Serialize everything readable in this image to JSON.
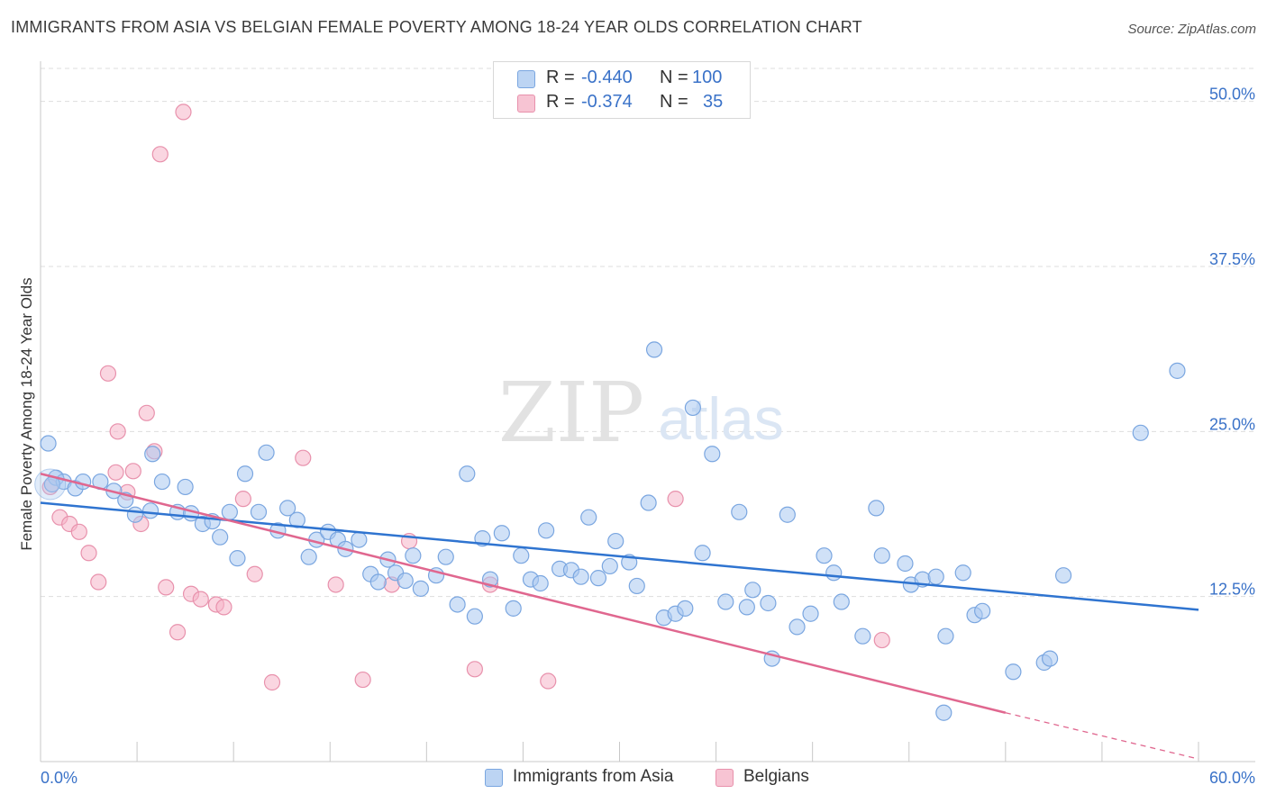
{
  "title": "IMMIGRANTS FROM ASIA VS BELGIAN FEMALE POVERTY AMONG 18-24 YEAR OLDS CORRELATION CHART",
  "source": "Source: ZipAtlas.com",
  "watermark": {
    "zip": "ZIP",
    "atlas": "atlas"
  },
  "colors": {
    "blue_fill": "#a9c8f0",
    "blue_stroke": "#7aa6e0",
    "blue_line": "#2f74d0",
    "pink_fill": "#f5b5c8",
    "pink_stroke": "#e891ac",
    "pink_line": "#e0678f",
    "tick_text": "#3a72c8",
    "grid": "#dddddd"
  },
  "legend_top": {
    "rows": [
      {
        "r_label": "R =",
        "r_value": "-0.440",
        "n_label": "N =",
        "n_value": "100"
      },
      {
        "r_label": "R =",
        "r_value": "-0.374",
        "n_label": "N =",
        "n_value": "35"
      }
    ]
  },
  "legend_bottom": {
    "items": [
      "Immigrants from Asia",
      "Belgians"
    ]
  },
  "chart_data": {
    "type": "scatter",
    "title": "IMMIGRANTS FROM ASIA VS BELGIAN FEMALE POVERTY AMONG 18-24 YEAR OLDS CORRELATION CHART",
    "xlabel": "",
    "ylabel": "Female Poverty Among 18-24 Year Olds",
    "xlim": [
      0,
      60
    ],
    "ylim": [
      0,
      52.5
    ],
    "x_tick_labels": [
      "0.0%",
      "60.0%"
    ],
    "y_ticks": [
      12.5,
      25.0,
      37.5,
      50.0
    ],
    "y_tick_labels": [
      "12.5%",
      "25.0%",
      "37.5%",
      "50.0%"
    ],
    "legend_position": "top-center",
    "series": [
      {
        "name": "Immigrants from Asia",
        "r": -0.44,
        "n": 100,
        "trend": {
          "x": [
            0,
            60
          ],
          "y": [
            19.6,
            11.5
          ]
        },
        "points": [
          [
            0.4,
            24.1
          ],
          [
            0.8,
            21.5
          ],
          [
            1.2,
            21.2
          ],
          [
            1.8,
            20.7
          ],
          [
            2.2,
            21.2
          ],
          [
            3.1,
            21.2
          ],
          [
            3.8,
            20.5
          ],
          [
            4.4,
            19.8
          ],
          [
            4.9,
            18.7
          ],
          [
            5.7,
            19.0
          ],
          [
            5.8,
            23.3
          ],
          [
            6.3,
            21.2
          ],
          [
            7.1,
            18.9
          ],
          [
            7.5,
            20.8
          ],
          [
            7.8,
            18.8
          ],
          [
            8.4,
            18.0
          ],
          [
            8.9,
            18.2
          ],
          [
            9.3,
            17.0
          ],
          [
            9.8,
            18.9
          ],
          [
            10.2,
            15.4
          ],
          [
            10.6,
            21.8
          ],
          [
            11.3,
            18.9
          ],
          [
            11.7,
            23.4
          ],
          [
            12.3,
            17.5
          ],
          [
            12.8,
            19.2
          ],
          [
            13.3,
            18.3
          ],
          [
            13.9,
            15.5
          ],
          [
            14.3,
            16.8
          ],
          [
            14.9,
            17.4
          ],
          [
            15.4,
            16.8
          ],
          [
            15.8,
            16.1
          ],
          [
            16.5,
            16.8
          ],
          [
            17.1,
            14.2
          ],
          [
            17.5,
            13.6
          ],
          [
            18.0,
            15.3
          ],
          [
            18.4,
            14.3
          ],
          [
            18.9,
            13.7
          ],
          [
            19.3,
            15.6
          ],
          [
            19.7,
            13.1
          ],
          [
            20.5,
            14.1
          ],
          [
            21.0,
            15.5
          ],
          [
            21.6,
            11.9
          ],
          [
            22.1,
            21.8
          ],
          [
            22.5,
            11.0
          ],
          [
            22.9,
            16.9
          ],
          [
            23.3,
            13.8
          ],
          [
            23.9,
            17.3
          ],
          [
            24.5,
            11.6
          ],
          [
            24.9,
            15.6
          ],
          [
            25.4,
            13.8
          ],
          [
            25.9,
            13.5
          ],
          [
            26.2,
            17.5
          ],
          [
            26.9,
            14.6
          ],
          [
            27.5,
            14.5
          ],
          [
            28.0,
            14.0
          ],
          [
            28.4,
            18.5
          ],
          [
            28.9,
            13.9
          ],
          [
            29.5,
            14.8
          ],
          [
            29.8,
            16.7
          ],
          [
            30.5,
            15.1
          ],
          [
            30.9,
            13.3
          ],
          [
            31.5,
            19.6
          ],
          [
            31.8,
            31.2
          ],
          [
            32.3,
            10.9
          ],
          [
            32.9,
            11.2
          ],
          [
            33.4,
            11.6
          ],
          [
            33.8,
            26.8
          ],
          [
            34.3,
            15.8
          ],
          [
            34.8,
            23.3
          ],
          [
            35.5,
            12.1
          ],
          [
            36.2,
            18.9
          ],
          [
            36.6,
            11.7
          ],
          [
            36.9,
            13.0
          ],
          [
            37.7,
            12.0
          ],
          [
            37.9,
            7.8
          ],
          [
            38.7,
            18.7
          ],
          [
            39.2,
            10.2
          ],
          [
            39.9,
            11.2
          ],
          [
            40.6,
            15.6
          ],
          [
            41.1,
            14.3
          ],
          [
            41.5,
            12.1
          ],
          [
            42.6,
            9.5
          ],
          [
            43.3,
            19.2
          ],
          [
            43.6,
            15.6
          ],
          [
            44.8,
            15.0
          ],
          [
            45.1,
            13.4
          ],
          [
            45.7,
            13.8
          ],
          [
            46.4,
            14.0
          ],
          [
            46.8,
            3.7
          ],
          [
            46.9,
            9.5
          ],
          [
            47.8,
            14.3
          ],
          [
            48.4,
            11.1
          ],
          [
            48.8,
            11.4
          ],
          [
            50.4,
            6.8
          ],
          [
            52.0,
            7.5
          ],
          [
            52.3,
            7.8
          ],
          [
            53.0,
            14.1
          ],
          [
            57.0,
            24.9
          ],
          [
            58.9,
            29.6
          ],
          [
            0.6,
            21.0
          ]
        ]
      },
      {
        "name": "Belgians",
        "r": -0.374,
        "n": 35,
        "trend": {
          "x": [
            0,
            50
          ],
          "y": [
            21.8,
            3.7
          ]
        },
        "trend_dashed_to": {
          "x": 60,
          "y": 0.2
        },
        "points": [
          [
            0.5,
            20.8
          ],
          [
            1.0,
            18.5
          ],
          [
            1.5,
            18.0
          ],
          [
            2.0,
            17.4
          ],
          [
            2.5,
            15.8
          ],
          [
            3.0,
            13.6
          ],
          [
            3.5,
            29.4
          ],
          [
            3.9,
            21.9
          ],
          [
            4.0,
            25.0
          ],
          [
            4.5,
            20.4
          ],
          [
            4.8,
            22.0
          ],
          [
            5.2,
            18.0
          ],
          [
            5.5,
            26.4
          ],
          [
            5.9,
            23.5
          ],
          [
            6.5,
            13.2
          ],
          [
            7.1,
            9.8
          ],
          [
            7.8,
            12.7
          ],
          [
            8.3,
            12.3
          ],
          [
            9.1,
            11.9
          ],
          [
            9.5,
            11.7
          ],
          [
            10.5,
            19.9
          ],
          [
            11.1,
            14.2
          ],
          [
            12.0,
            6.0
          ],
          [
            13.6,
            23.0
          ],
          [
            15.3,
            13.4
          ],
          [
            16.7,
            6.2
          ],
          [
            18.2,
            13.4
          ],
          [
            19.1,
            16.7
          ],
          [
            22.5,
            7.0
          ],
          [
            23.3,
            13.4
          ],
          [
            26.3,
            6.1
          ],
          [
            32.9,
            19.9
          ],
          [
            43.6,
            9.2
          ],
          [
            6.2,
            46.0
          ],
          [
            7.4,
            49.2
          ]
        ]
      }
    ]
  }
}
